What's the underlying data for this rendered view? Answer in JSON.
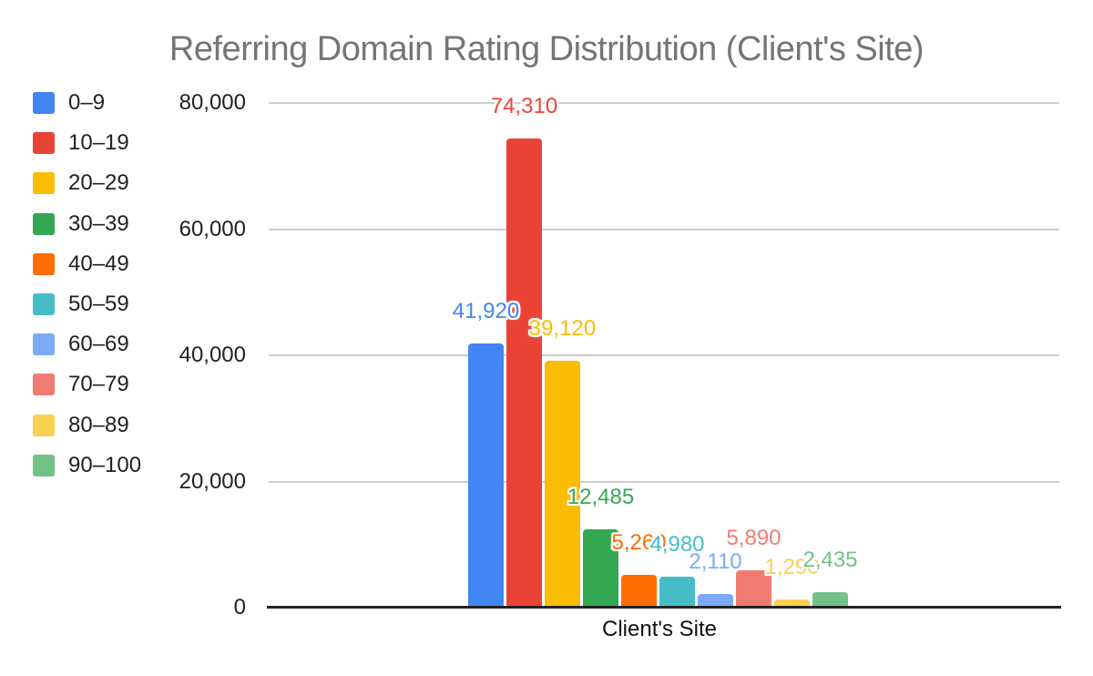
{
  "chart_data": {
    "type": "bar",
    "title": "Referring Domain Rating Distribution (Client's Site)",
    "xlabel": "Client's Site",
    "x_categories": [
      "Client's Site"
    ],
    "ylim": [
      0,
      80000
    ],
    "grid": true,
    "legend_position": "left",
    "y_ticks": [
      {
        "label": "80,000",
        "value": 80000
      },
      {
        "label": "60,000",
        "value": 60000
      },
      {
        "label": "40,000",
        "value": 40000
      },
      {
        "label": "20,000",
        "value": 20000
      },
      {
        "label": "0",
        "value": 0
      }
    ],
    "series": [
      {
        "name": "0–9",
        "value": 41920,
        "label": "41,920",
        "color": "#4285F4"
      },
      {
        "name": "10–19",
        "value": 74310,
        "label": "74,310",
        "color": "#EA4335"
      },
      {
        "name": "20–29",
        "value": 39120,
        "label": "39,120",
        "color": "#FBBC04"
      },
      {
        "name": "30–39",
        "value": 12485,
        "label": "12,485",
        "color": "#34A853"
      },
      {
        "name": "40–49",
        "value": 5260,
        "label": "5,260",
        "color": "#FF6D01"
      },
      {
        "name": "50–59",
        "value": 4980,
        "label": "4,980",
        "color": "#46BDC6"
      },
      {
        "name": "60–69",
        "value": 2110,
        "label": "2,110",
        "color": "#7BAAF7"
      },
      {
        "name": "70–79",
        "value": 5890,
        "label": "5,890",
        "color": "#F07B72"
      },
      {
        "name": "80–89",
        "value": 1290,
        "label": "1,290",
        "color": "#FCD04F"
      },
      {
        "name": "90–100",
        "value": 2435,
        "label": "2,435",
        "color": "#71C287"
      }
    ]
  }
}
